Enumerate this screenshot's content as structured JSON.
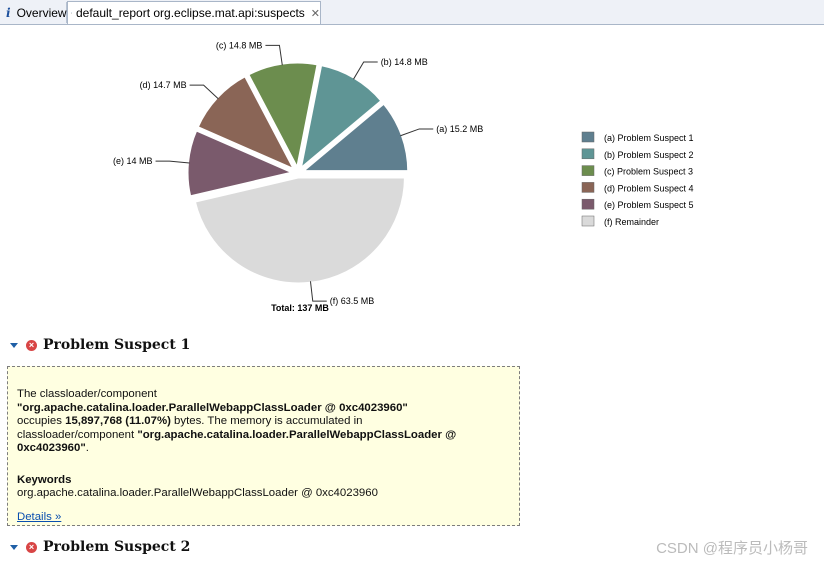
{
  "tabs": [
    {
      "label": "Overview",
      "icon": "info-icon"
    },
    {
      "label": "default_report  org.eclipse.mat.api:suspects",
      "icon": "database-report-icon",
      "close_icon": "close-icon"
    }
  ],
  "chart_data": {
    "type": "pie",
    "title": "",
    "total_label": "Total: 137 MB",
    "slices": [
      {
        "letter": "(a)",
        "legend": "Problem Suspect 1",
        "value": 15.2,
        "label": "(a)  15.2 MB",
        "color": "#5f7f8f"
      },
      {
        "letter": "(b)",
        "legend": "Problem Suspect 2",
        "value": 14.8,
        "label": "(b)  14.8 MB",
        "color": "#5f9595"
      },
      {
        "letter": "(c)",
        "legend": "Problem Suspect 3",
        "value": 14.8,
        "label": "(c)  14.8 MB",
        "color": "#6c8d4e"
      },
      {
        "letter": "(d)",
        "legend": "Problem Suspect 4",
        "value": 14.7,
        "label": "(d)  14.7 MB",
        "color": "#8a6556"
      },
      {
        "letter": "(e)",
        "legend": "Problem Suspect 5",
        "value": 14.0,
        "label": "(e)  14 MB",
        "color": "#7a5a6c"
      },
      {
        "letter": "(f)",
        "legend": "Remainder",
        "value": 63.5,
        "label": "(f)  63.5 MB",
        "color": "#dadada"
      }
    ],
    "legend_position": "right"
  },
  "suspect1": {
    "title": "Problem Suspect 1",
    "line1": "The classloader/component",
    "line2": "\"org.apache.catalina.loader.ParallelWebappClassLoader @ 0xc4023960\"",
    "occupies_pre": "occupies ",
    "occupies_bold": "15,897,768 (11.07%)",
    "occupies_post": " bytes. The memory is accumulated in",
    "accum_pre": "classloader/component ",
    "accum_bold": "\"org.apache.catalina.loader.ParallelWebappClassLoader @ 0xc4023960\"",
    "accum_post": ".",
    "keywords_title": "Keywords",
    "keywords_value": "org.apache.catalina.loader.ParallelWebappClassLoader @ 0xc4023960",
    "details_link": "Details »"
  },
  "suspect2": {
    "title": "Problem Suspect 2"
  },
  "watermark": "CSDN @程序员小杨哥"
}
